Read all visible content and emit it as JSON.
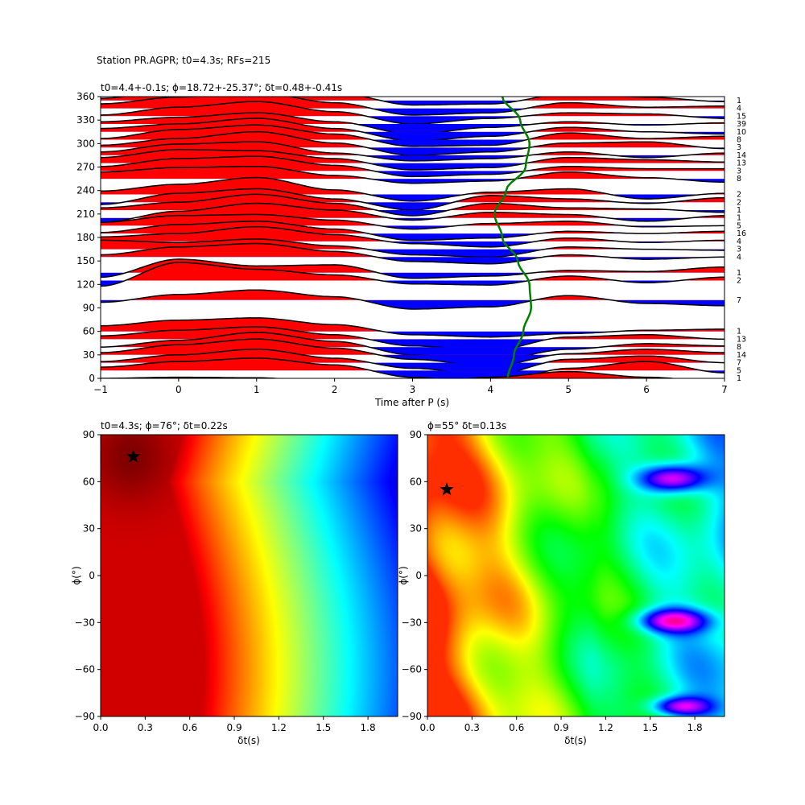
{
  "figure": {
    "suptitle": "Station PR.AGPR; t0=4.3s; RFs=215"
  },
  "chart_data": [
    {
      "type": "line",
      "panel": "receiver-function-gather",
      "title": "t0=4.4+-0.1s; ϕ=18.72+-25.37°; δt=0.48+-0.41s",
      "xlabel": "Time after P (s)",
      "ylabel": "",
      "xlim": [
        -1,
        7
      ],
      "ylim": [
        0,
        360
      ],
      "xticks": [
        -1,
        0,
        1,
        2,
        3,
        4,
        5,
        6,
        7
      ],
      "yticks": [
        0,
        30,
        60,
        90,
        120,
        150,
        180,
        210,
        240,
        270,
        300,
        330,
        360
      ],
      "fill_positive_color": "#ff0000",
      "fill_negative_color": "#0000ff",
      "t0_curve_color": "#008000",
      "traces": [
        {
          "baz": 0,
          "count": 1,
          "amp": [
            0.0,
            0.1,
            0.05,
            -0.3,
            -0.5,
            0.1,
            0.6,
            0.1,
            -0.3
          ]
        },
        {
          "baz": 10,
          "count": 5,
          "amp": [
            0.3,
            0.8,
            1.1,
            0.5,
            -0.6,
            -1.2,
            0.2,
            0.8,
            -0.2
          ]
        },
        {
          "baz": 20,
          "count": 7,
          "amp": [
            0.1,
            0.7,
            1.2,
            0.4,
            -0.5,
            -1.1,
            0.3,
            0.6,
            0.0
          ]
        },
        {
          "baz": 30,
          "count": 14,
          "amp": [
            0.2,
            0.9,
            1.4,
            0.6,
            -0.4,
            -1.0,
            0.1,
            0.5,
            0.2
          ]
        },
        {
          "baz": 40,
          "count": 8,
          "amp": [
            0.0,
            0.6,
            1.3,
            0.5,
            -0.7,
            -1.2,
            -0.2,
            0.3,
            0.1
          ]
        },
        {
          "baz": 50,
          "count": 13,
          "amp": [
            0.3,
            0.8,
            1.1,
            0.4,
            -0.6,
            -1.0,
            0.2,
            0.4,
            0.0
          ]
        },
        {
          "baz": 60,
          "count": 1,
          "amp": [
            0.5,
            1.0,
            1.2,
            0.6,
            -0.3,
            -0.5,
            -0.2,
            0.1,
            0.2
          ]
        },
        {
          "baz": 100,
          "count": 7,
          "amp": [
            -0.2,
            0.5,
            0.9,
            0.3,
            -0.8,
            -0.6,
            0.4,
            -0.3,
            -0.5
          ]
        },
        {
          "baz": 125,
          "count": 2,
          "amp": [
            -0.5,
            1.6,
            1.0,
            0.5,
            -0.3,
            -0.4,
            0.4,
            -0.2,
            0.3
          ]
        },
        {
          "baz": 135,
          "count": 1,
          "amp": [
            -0.4,
            1.2,
            0.6,
            0.7,
            -0.5,
            -0.3,
            0.2,
            0.1,
            0.5
          ]
        },
        {
          "baz": 155,
          "count": 4,
          "amp": [
            0.2,
            0.9,
            1.2,
            0.5,
            -0.4,
            -0.6,
            0.2,
            -0.2,
            0.0
          ]
        },
        {
          "baz": 165,
          "count": 3,
          "amp": [
            0.8,
            0.6,
            0.9,
            0.3,
            -0.5,
            -0.7,
            0.2,
            0.0,
            -0.1
          ]
        },
        {
          "baz": 175,
          "count": 4,
          "amp": [
            0.4,
            0.7,
            1.3,
            0.6,
            -0.2,
            -0.5,
            0.3,
            -0.1,
            0.1
          ]
        },
        {
          "baz": 185,
          "count": 16,
          "amp": [
            0.1,
            0.8,
            1.1,
            0.4,
            -0.6,
            -0.4,
            0.2,
            0.0,
            0.2
          ]
        },
        {
          "baz": 195,
          "count": 5,
          "amp": [
            0.3,
            0.9,
            1.0,
            0.5,
            -0.3,
            0.2,
            0.4,
            -0.1,
            0.0
          ]
        },
        {
          "baz": 205,
          "count": 1,
          "amp": [
            -0.4,
            0.6,
            1.3,
            0.7,
            -0.2,
            0.5,
            0.3,
            -0.3,
            0.2
          ]
        },
        {
          "baz": 215,
          "count": 1,
          "amp": [
            0.2,
            0.7,
            1.4,
            0.6,
            -0.5,
            0.6,
            0.2,
            0.1,
            -0.2
          ]
        },
        {
          "baz": 225,
          "count": 2,
          "amp": [
            -0.2,
            0.8,
            1.2,
            0.3,
            -0.7,
            0.6,
            0.3,
            -0.1,
            0.4
          ]
        },
        {
          "baz": 235,
          "count": 2,
          "amp": [
            0.3,
            0.9,
            1.5,
            0.4,
            -0.6,
            0.2,
            0.5,
            -0.4,
            0.1
          ]
        },
        {
          "baz": 255,
          "count": 8,
          "amp": [
            0.6,
            1.0,
            1.1,
            0.3,
            -0.4,
            -0.2,
            0.6,
            0.1,
            -0.3
          ]
        },
        {
          "baz": 265,
          "count": 3,
          "amp": [
            0.4,
            1.1,
            1.3,
            0.5,
            -0.5,
            -0.3,
            0.4,
            0.2,
            0.2
          ]
        },
        {
          "baz": 275,
          "count": 13,
          "amp": [
            0.5,
            1.2,
            1.1,
            0.4,
            -0.6,
            -0.4,
            0.5,
            0.3,
            0.1
          ]
        },
        {
          "baz": 285,
          "count": 14,
          "amp": [
            0.3,
            1.0,
            1.2,
            0.2,
            -0.5,
            -0.3,
            0.3,
            -0.2,
            0.2
          ]
        },
        {
          "baz": 295,
          "count": 3,
          "amp": [
            0.2,
            0.8,
            1.4,
            0.4,
            -0.7,
            -0.4,
            0.4,
            0.5,
            -0.1
          ]
        },
        {
          "baz": 305,
          "count": 8,
          "amp": [
            0.1,
            0.9,
            1.3,
            0.5,
            -0.6,
            -0.5,
            0.6,
            0.1,
            0.3
          ]
        },
        {
          "baz": 315,
          "count": 10,
          "amp": [
            0.3,
            0.7,
            1.2,
            0.3,
            -0.8,
            -0.4,
            0.4,
            0.0,
            -0.2
          ]
        },
        {
          "baz": 325,
          "count": 39,
          "amp": [
            0.2,
            0.6,
            1.0,
            0.2,
            -0.9,
            -0.3,
            0.2,
            -0.1,
            0.1
          ]
        },
        {
          "baz": 335,
          "count": 15,
          "amp": [
            0.1,
            0.8,
            1.3,
            0.4,
            -0.7,
            -0.2,
            0.3,
            0.2,
            -0.2
          ]
        },
        {
          "baz": 345,
          "count": 4,
          "amp": [
            0.4,
            1.0,
            1.4,
            0.5,
            -0.6,
            -0.4,
            0.5,
            0.1,
            0.2
          ]
        },
        {
          "baz": 355,
          "count": 1,
          "amp": [
            0.2,
            0.9,
            1.5,
            0.7,
            -0.4,
            -0.3,
            0.6,
            0.3,
            -0.1
          ]
        }
      ],
      "t0_curve": {
        "baz": [
          0,
          30,
          60,
          90,
          120,
          150,
          180,
          210,
          240,
          270,
          300,
          330,
          360
        ],
        "t": [
          4.22,
          4.3,
          4.42,
          4.52,
          4.5,
          4.35,
          4.15,
          4.05,
          4.2,
          4.45,
          4.5,
          4.38,
          4.15
        ]
      }
    },
    {
      "type": "heatmap",
      "panel": "grid-search-energy",
      "title": "t0=4.3s; ϕ=76°; δt=0.22s",
      "xlabel": "δt(s)",
      "ylabel": "ϕ(°)",
      "xlim": [
        0,
        2
      ],
      "ylim": [
        -90,
        90
      ],
      "xticks": [
        0.0,
        0.3,
        0.6,
        0.9,
        1.2,
        1.5,
        1.8
      ],
      "yticks": [
        -90,
        -60,
        -30,
        0,
        30,
        60,
        90
      ],
      "colormap": "jet",
      "best": {
        "dt": 0.22,
        "phi": 76
      }
    },
    {
      "type": "heatmap",
      "panel": "grid-search-transverse",
      "title": "ϕ=55° δt=0.13s",
      "xlabel": "δt(s)",
      "ylabel": "ϕ(°)",
      "xlim": [
        0,
        2
      ],
      "ylim": [
        -90,
        90
      ],
      "xticks": [
        0.0,
        0.3,
        0.6,
        0.9,
        1.2,
        1.5,
        1.8
      ],
      "yticks": [
        -90,
        -60,
        -30,
        0,
        30,
        60,
        90
      ],
      "colormap": "hsv",
      "best": {
        "dt": 0.13,
        "phi": 55
      }
    }
  ]
}
